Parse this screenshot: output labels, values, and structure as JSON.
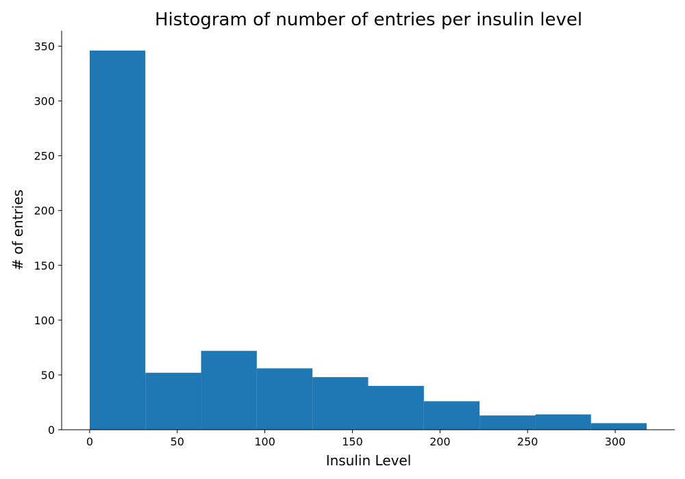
{
  "chart_data": {
    "type": "bar",
    "title": "Histogram of number of entries per insulin level",
    "xlabel": "Insulin Level",
    "ylabel": "# of entries",
    "bin_edges": [
      0,
      31.8,
      63.6,
      95.4,
      127.2,
      159.0,
      190.8,
      222.6,
      254.4,
      286.2,
      318.0
    ],
    "values": [
      346,
      52,
      72,
      56,
      48,
      40,
      26,
      13,
      14,
      6
    ],
    "xlim": [
      -16,
      334
    ],
    "ylim": [
      0,
      364
    ],
    "xticks": [
      0,
      50,
      100,
      150,
      200,
      250,
      300
    ],
    "yticks": [
      0,
      50,
      100,
      150,
      200,
      250,
      300,
      350
    ],
    "bar_color": "#1f77b4",
    "grid": false
  }
}
